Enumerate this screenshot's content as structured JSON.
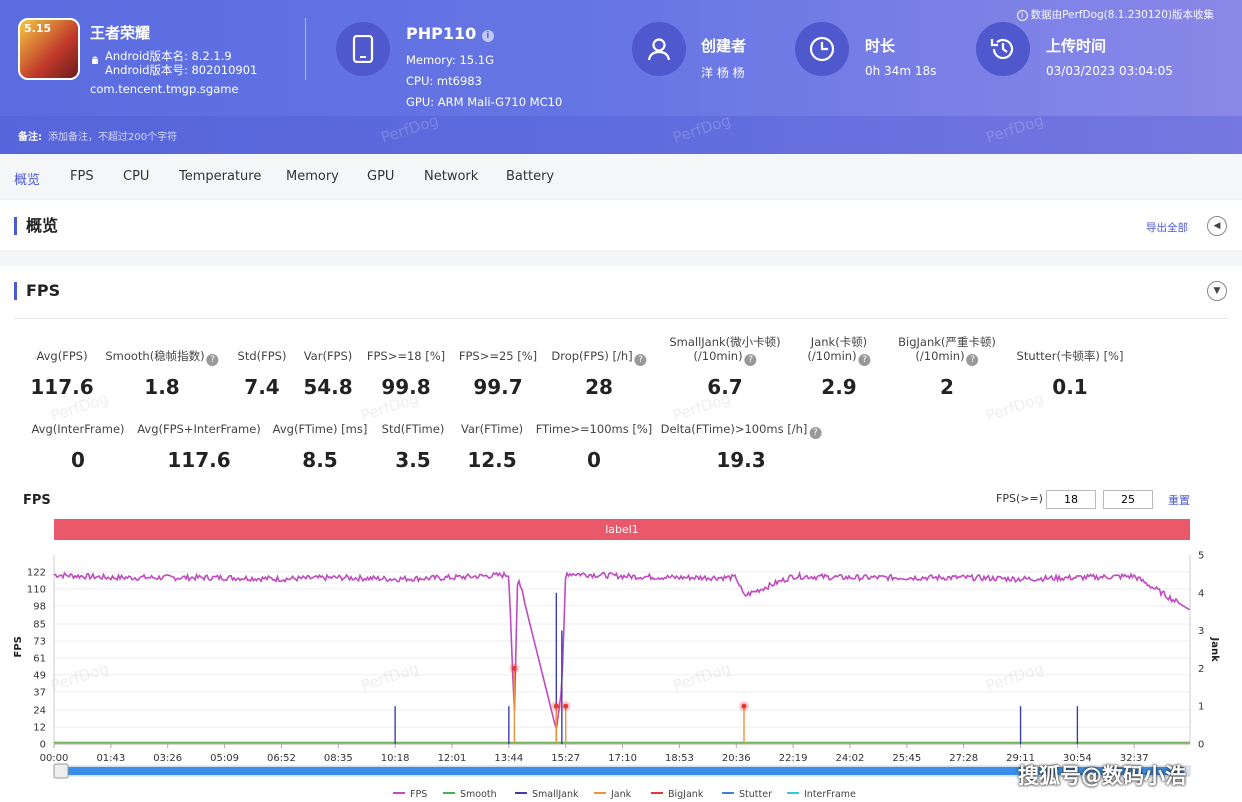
{
  "app": {
    "name": "王者荣耀",
    "icon_badge": "5.15",
    "android_version_name": "Android版本名: 8.2.1.9",
    "android_version_code": "Android版本号: 802010901",
    "package": "com.tencent.tmgp.sgame"
  },
  "device": {
    "name": "PHP110",
    "memory": "Memory: 15.1G",
    "cpu": "CPU: mt6983",
    "gpu": "GPU: ARM Mali-G710 MC10"
  },
  "creator": {
    "label": "创建者",
    "value": "洋 杨 杨"
  },
  "duration": {
    "label": "时长",
    "value": "0h 34m 18s"
  },
  "upload": {
    "label": "上传时间",
    "value": "03/03/2023 03:04:05"
  },
  "source_note": "数据由PerfDog(8.1.230120)版本收集",
  "note": {
    "label": "备注:",
    "placeholder": "添加备注，不超过200个字符"
  },
  "tabs": [
    "概览",
    "FPS",
    "CPU",
    "Temperature",
    "Memory",
    "GPU",
    "Network",
    "Battery"
  ],
  "overview": {
    "title": "概览",
    "export_label": "导出全部"
  },
  "fps_section": {
    "title": "FPS"
  },
  "metrics_row1": [
    {
      "label": "Avg(FPS)",
      "value": "117.6"
    },
    {
      "label": "Smooth(稳帧指数)",
      "value": "1.8",
      "help": true
    },
    {
      "label": "Std(FPS)",
      "value": "7.4"
    },
    {
      "label": "Var(FPS)",
      "value": "54.8"
    },
    {
      "label": "FPS>=18 [%]",
      "value": "99.8"
    },
    {
      "label": "FPS>=25 [%]",
      "value": "99.7"
    },
    {
      "label": "Drop(FPS) [/h]",
      "value": "28",
      "help": true
    },
    {
      "label": "SmallJank(微小卡顿)",
      "label2": "(/10min)",
      "value": "6.7",
      "help": true
    },
    {
      "label": "Jank(卡顿)",
      "label2": "(/10min)",
      "value": "2.9",
      "help": true
    },
    {
      "label": "BigJank(严重卡顿)",
      "label2": "(/10min)",
      "value": "2",
      "help": true
    },
    {
      "label": "Stutter(卡顿率) [%]",
      "value": "0.1"
    }
  ],
  "metrics_row2": [
    {
      "label": "Avg(InterFrame)",
      "value": "0"
    },
    {
      "label": "Avg(FPS+InterFrame)",
      "value": "117.6"
    },
    {
      "label": "Avg(FTime) [ms]",
      "value": "8.5"
    },
    {
      "label": "Std(FTime)",
      "value": "3.5"
    },
    {
      "label": "Var(FTime)",
      "value": "12.5"
    },
    {
      "label": "FTime>=100ms [%]",
      "value": "0"
    },
    {
      "label": "Delta(FTime)>100ms [/h]",
      "value": "19.3",
      "help": true
    }
  ],
  "fps_filter": {
    "label": "FPS(>=)",
    "value1": "18",
    "value2": "25",
    "reset_label": "重置"
  },
  "watermark": "PerfDog",
  "signature": "搜狐号@数码小浩",
  "icons": {
    "device": "phone-icon",
    "creator": "user-icon",
    "duration": "clock-icon",
    "upload": "history-icon",
    "info": "info-icon"
  },
  "colors": {
    "accent": "#4a5ad6",
    "fps": "#c04bc0",
    "smooth": "#4caf50",
    "smalljank": "#3b3fb5",
    "jank": "#f0923a",
    "bigjank": "#e53935",
    "stutter": "#3f7fd6",
    "interframe": "#35c9d6",
    "label_bar": "#e9596b"
  },
  "chart_data": {
    "type": "line",
    "title": "FPS",
    "xlabel": "",
    "ylabel": "FPS",
    "y2label": "Jank",
    "band_label": "label1",
    "ylim": [
      0,
      134
    ],
    "y2lim": [
      0,
      5
    ],
    "yticks": [
      0,
      12,
      24,
      37,
      49,
      61,
      73,
      85,
      98,
      110,
      122
    ],
    "y2ticks": [
      0,
      1,
      2,
      3,
      4,
      5
    ],
    "xticks": [
      "00:00",
      "01:43",
      "03:26",
      "05:09",
      "06:52",
      "08:35",
      "10:18",
      "12:01",
      "13:44",
      "15:27",
      "17:10",
      "18:53",
      "20:36",
      "22:19",
      "24:02",
      "25:45",
      "27:28",
      "29:11",
      "30:54",
      "32:37"
    ],
    "legend_position": "bottom",
    "series": [
      {
        "name": "FPS",
        "x": [
          "00:00",
          "01:43",
          "03:26",
          "05:09",
          "06:52",
          "08:35",
          "10:18",
          "12:01",
          "13:44",
          "13:54",
          "14:00",
          "15:10",
          "15:20",
          "15:27",
          "17:10",
          "18:53",
          "20:36",
          "20:50",
          "22:19",
          "24:02",
          "25:45",
          "27:28",
          "29:11",
          "30:54",
          "32:37",
          "34:18"
        ],
        "values": [
          120,
          118,
          118,
          118,
          117,
          118,
          117,
          118,
          120,
          20,
          120,
          10,
          40,
          121,
          119,
          118,
          118,
          105,
          119,
          118,
          118,
          118,
          117,
          118,
          119,
          95
        ]
      },
      {
        "name": "Smooth",
        "values": [
          0.5
        ]
      },
      {
        "name": "SmallJank",
        "x": [
          "10:18",
          "13:44",
          "15:10",
          "15:20",
          "29:11",
          "30:54"
        ],
        "values": [
          1,
          1,
          4,
          3,
          1,
          1
        ]
      },
      {
        "name": "Jank",
        "x": [
          "13:54",
          "15:10",
          "15:27",
          "20:50"
        ],
        "values": [
          2,
          1,
          1,
          1
        ]
      },
      {
        "name": "BigJank",
        "x": [
          "13:54",
          "15:10",
          "15:27",
          "20:50"
        ],
        "values": [
          2,
          1,
          1,
          1
        ]
      },
      {
        "name": "Stutter",
        "values": []
      },
      {
        "name": "InterFrame",
        "values": []
      }
    ],
    "grid": true
  }
}
